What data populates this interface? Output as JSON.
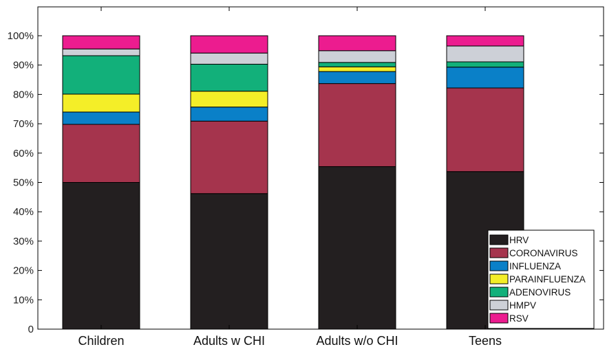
{
  "chart_data": {
    "type": "bar",
    "stacked": true,
    "categories": [
      "Children",
      "Adults w CHI",
      "Adults w/o CHI",
      "Teens"
    ],
    "series": [
      {
        "name": "HRV",
        "color": "#231f20",
        "values": [
          50.0,
          46.2,
          55.4,
          53.7
        ]
      },
      {
        "name": "CORONAVIRUS",
        "color": "#a5344d",
        "values": [
          19.8,
          24.7,
          28.3,
          28.5
        ]
      },
      {
        "name": "INFLUENZA",
        "color": "#0a80c8",
        "values": [
          4.2,
          4.8,
          4.1,
          7.1
        ]
      },
      {
        "name": "PARAINFLUENZA",
        "color": "#f4ee28",
        "values": [
          6.1,
          5.4,
          1.6,
          0.0
        ]
      },
      {
        "name": "ADENOVIRUS",
        "color": "#12b07a",
        "values": [
          13.1,
          9.2,
          1.5,
          1.8
        ]
      },
      {
        "name": "HMPV",
        "color": "#cdd0d7",
        "values": [
          2.3,
          3.8,
          4.0,
          5.4
        ]
      },
      {
        "name": "RSV",
        "color": "#ec1c8f",
        "values": [
          4.5,
          5.9,
          5.1,
          3.5
        ]
      }
    ],
    "yticks": [
      "0",
      "10%",
      "20%",
      "30%",
      "40%",
      "50%",
      "60%",
      "70%",
      "80%",
      "90%",
      "100%"
    ],
    "ylim": [
      0,
      100
    ],
    "legend": "bottom-right",
    "grid": false
  }
}
